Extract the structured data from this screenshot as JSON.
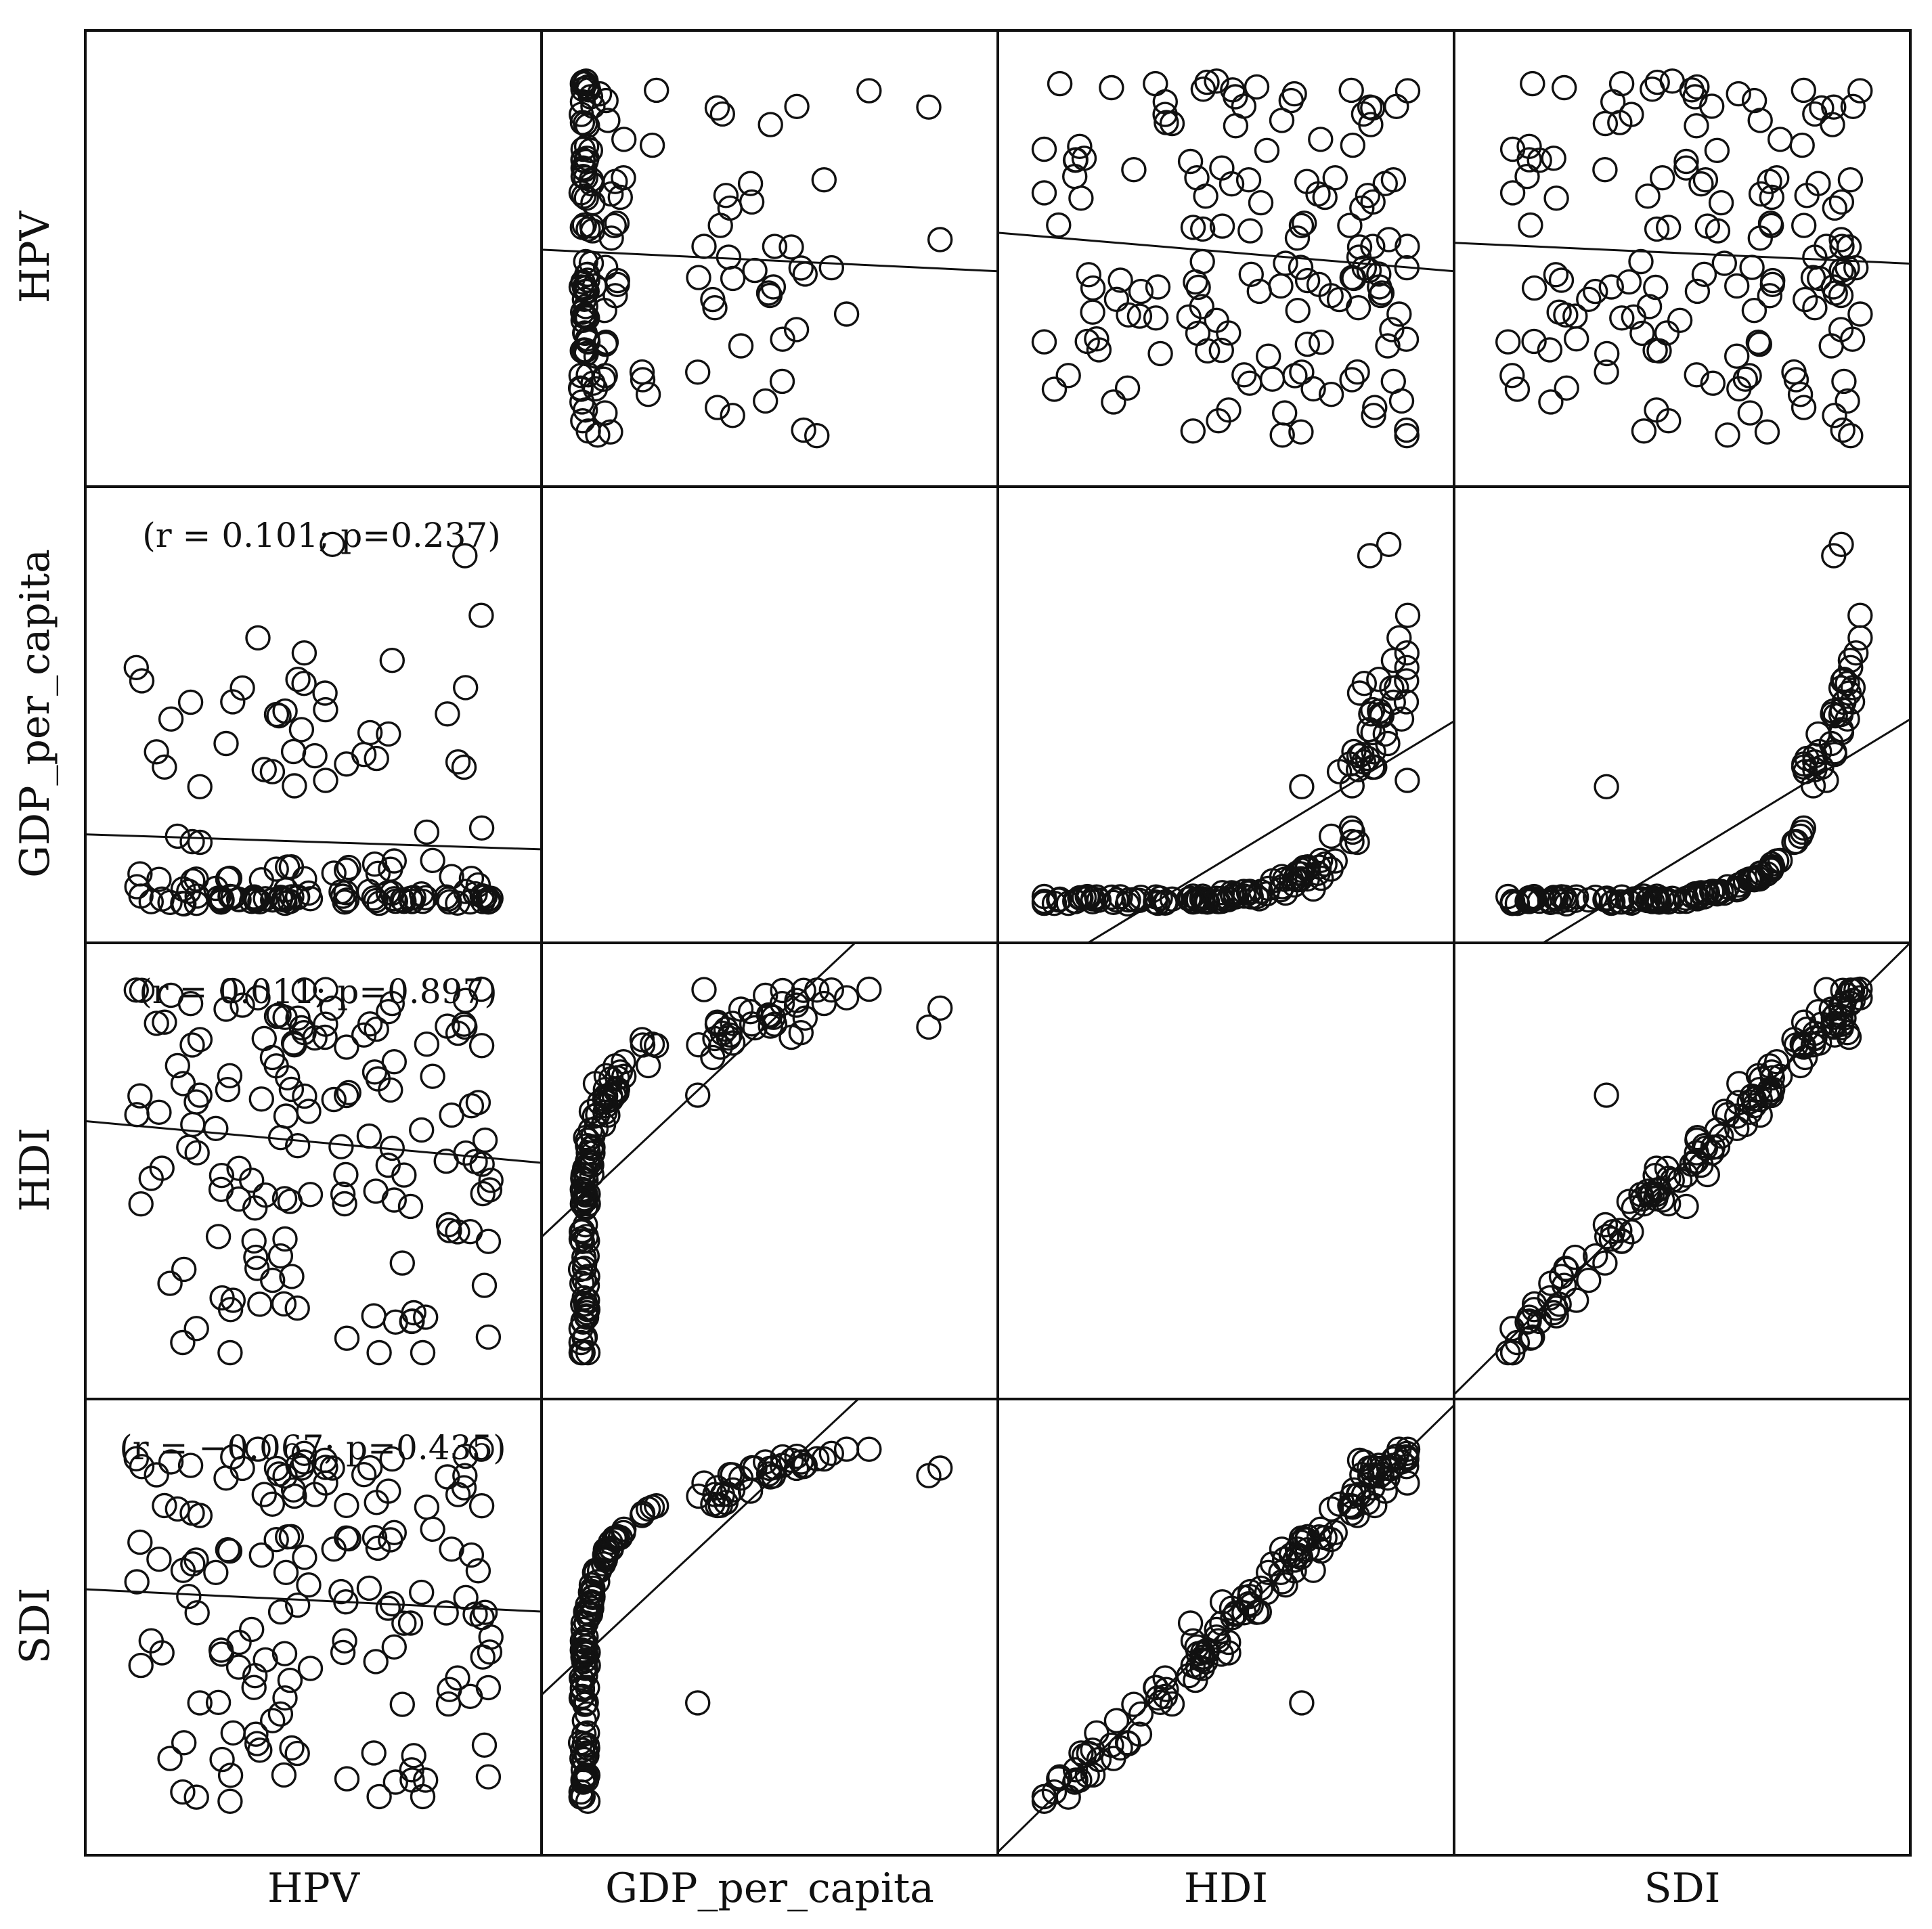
{
  "chart_data": {
    "type": "scatter",
    "variables": [
      "HPV",
      "GDP_per_capita",
      "HDI",
      "SDI"
    ],
    "grid": false,
    "correlations": [
      {
        "row": "GDP_per_capita",
        "col": "HPV",
        "r": 0.101,
        "p": 0.237,
        "label": "(r = 0.101; p=0.237)"
      },
      {
        "row": "HDI",
        "col": "HPV",
        "r": 0.011,
        "p": 0.897,
        "label": "(r = 0.011; p=0.897)"
      },
      {
        "row": "SDI",
        "col": "HPV",
        "r": -0.067,
        "p": 0.435,
        "label": "(r = −0.067; p=0.435)"
      }
    ],
    "points_per_panel": 140
  }
}
